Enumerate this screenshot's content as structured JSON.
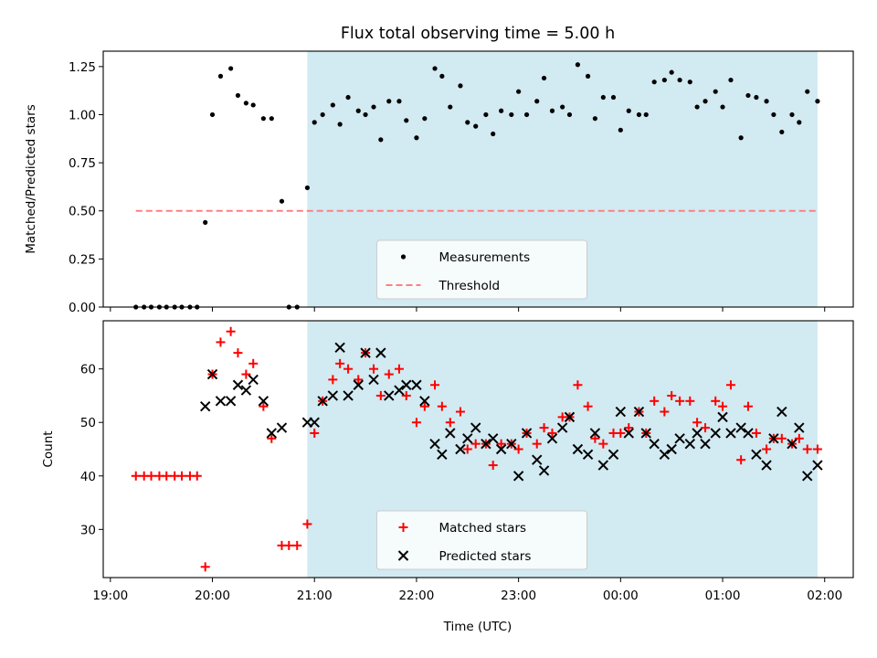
{
  "figure": {
    "title": "Flux total observing time = 5.00 h",
    "xlabel": "Time (UTC)"
  },
  "chart_data": [
    {
      "type": "scatter",
      "panel": "top",
      "ylabel": "Matched/Predicted stars",
      "ylim": [
        0,
        1.33
      ],
      "yticks": [
        0.0,
        0.25,
        0.5,
        0.75,
        1.0,
        1.25
      ],
      "ytick_labels": [
        "0.00",
        "0.25",
        "0.50",
        "0.75",
        "1.00",
        "1.25"
      ],
      "x_unit": "hours after 19:00 UTC",
      "xlim": [
        -0.07,
        7.28
      ],
      "xticks": [
        0,
        1,
        2,
        3,
        4,
        5,
        6,
        7
      ],
      "xtick_labels": [
        "19:00",
        "20:00",
        "21:00",
        "22:00",
        "23:00",
        "00:00",
        "01:00",
        "02:00"
      ],
      "shaded_region": {
        "x0": 1.93,
        "x1": 6.93,
        "color": "#add8e6"
      },
      "legend": {
        "placement": "lower center",
        "entries": [
          "Measurements",
          "Threshold"
        ]
      },
      "series": [
        {
          "name": "Measurements",
          "marker": "dot",
          "color": "#000000",
          "points": [
            [
              0.25,
              0.0
            ],
            [
              0.33,
              0.0
            ],
            [
              0.4,
              0.0
            ],
            [
              0.48,
              0.0
            ],
            [
              0.55,
              0.0
            ],
            [
              0.63,
              0.0
            ],
            [
              0.7,
              0.0
            ],
            [
              0.78,
              0.0
            ],
            [
              0.85,
              0.0
            ],
            [
              0.93,
              0.44
            ],
            [
              1.0,
              1.0
            ],
            [
              1.08,
              1.2
            ],
            [
              1.18,
              1.24
            ],
            [
              1.25,
              1.1
            ],
            [
              1.33,
              1.06
            ],
            [
              1.4,
              1.05
            ],
            [
              1.5,
              0.98
            ],
            [
              1.58,
              0.98
            ],
            [
              1.68,
              0.55
            ],
            [
              1.75,
              0.0
            ],
            [
              1.83,
              0.0
            ],
            [
              1.93,
              0.62
            ],
            [
              2.0,
              0.96
            ],
            [
              2.08,
              1.0
            ],
            [
              2.18,
              1.05
            ],
            [
              2.25,
              0.95
            ],
            [
              2.33,
              1.09
            ],
            [
              2.43,
              1.02
            ],
            [
              2.5,
              1.0
            ],
            [
              2.58,
              1.04
            ],
            [
              2.65,
              0.87
            ],
            [
              2.73,
              1.07
            ],
            [
              2.83,
              1.07
            ],
            [
              2.9,
              0.97
            ],
            [
              3.0,
              0.88
            ],
            [
              3.08,
              0.98
            ],
            [
              3.18,
              1.24
            ],
            [
              3.25,
              1.2
            ],
            [
              3.33,
              1.04
            ],
            [
              3.43,
              1.15
            ],
            [
              3.5,
              0.96
            ],
            [
              3.58,
              0.94
            ],
            [
              3.68,
              1.0
            ],
            [
              3.75,
              0.9
            ],
            [
              3.83,
              1.02
            ],
            [
              3.93,
              1.0
            ],
            [
              4.0,
              1.12
            ],
            [
              4.08,
              1.0
            ],
            [
              4.18,
              1.07
            ],
            [
              4.25,
              1.19
            ],
            [
              4.33,
              1.02
            ],
            [
              4.43,
              1.04
            ],
            [
              4.5,
              1.0
            ],
            [
              4.58,
              1.26
            ],
            [
              4.68,
              1.2
            ],
            [
              4.75,
              0.98
            ],
            [
              4.83,
              1.09
            ],
            [
              4.93,
              1.09
            ],
            [
              5.0,
              0.92
            ],
            [
              5.08,
              1.02
            ],
            [
              5.18,
              1.0
            ],
            [
              5.25,
              1.0
            ],
            [
              5.33,
              1.17
            ],
            [
              5.43,
              1.18
            ],
            [
              5.5,
              1.22
            ],
            [
              5.58,
              1.18
            ],
            [
              5.68,
              1.17
            ],
            [
              5.75,
              1.04
            ],
            [
              5.83,
              1.07
            ],
            [
              5.93,
              1.12
            ],
            [
              6.0,
              1.04
            ],
            [
              6.08,
              1.18
            ],
            [
              6.18,
              0.88
            ],
            [
              6.25,
              1.1
            ],
            [
              6.33,
              1.09
            ],
            [
              6.43,
              1.07
            ],
            [
              6.5,
              1.0
            ],
            [
              6.58,
              0.91
            ],
            [
              6.68,
              1.0
            ],
            [
              6.75,
              0.96
            ],
            [
              6.83,
              1.12
            ],
            [
              6.93,
              1.07
            ]
          ]
        },
        {
          "name": "Threshold",
          "style": "dashed-line",
          "color": "#ff7f7f",
          "points": [
            [
              0.25,
              0.5
            ],
            [
              6.93,
              0.5
            ]
          ]
        }
      ]
    },
    {
      "type": "scatter",
      "panel": "bottom",
      "ylabel": "Count",
      "ylim": [
        21,
        69
      ],
      "yticks": [
        30,
        40,
        50,
        60
      ],
      "ytick_labels": [
        "30",
        "40",
        "50",
        "60"
      ],
      "x_unit": "hours after 19:00 UTC",
      "xlim": [
        -0.07,
        7.28
      ],
      "xticks": [
        0,
        1,
        2,
        3,
        4,
        5,
        6,
        7
      ],
      "xtick_labels": [
        "19:00",
        "20:00",
        "21:00",
        "22:00",
        "23:00",
        "00:00",
        "01:00",
        "02:00"
      ],
      "shaded_region": {
        "x0": 1.93,
        "x1": 6.93,
        "color": "#add8e6"
      },
      "legend": {
        "placement": "lower center",
        "entries": [
          "Matched stars",
          "Predicted stars"
        ]
      },
      "series": [
        {
          "name": "Matched stars",
          "marker": "plus",
          "color": "#ff0000",
          "points": [
            [
              0.25,
              40
            ],
            [
              0.33,
              40
            ],
            [
              0.4,
              40
            ],
            [
              0.48,
              40
            ],
            [
              0.55,
              40
            ],
            [
              0.63,
              40
            ],
            [
              0.7,
              40
            ],
            [
              0.78,
              40
            ],
            [
              0.85,
              40
            ],
            [
              0.93,
              23
            ],
            [
              1.0,
              59
            ],
            [
              1.08,
              65
            ],
            [
              1.18,
              67
            ],
            [
              1.25,
              63
            ],
            [
              1.33,
              59
            ],
            [
              1.4,
              61
            ],
            [
              1.5,
              53
            ],
            [
              1.58,
              47
            ],
            [
              1.68,
              27
            ],
            [
              1.75,
              27
            ],
            [
              1.83,
              27
            ],
            [
              1.93,
              31
            ],
            [
              2.0,
              48
            ],
            [
              2.08,
              54
            ],
            [
              2.18,
              58
            ],
            [
              2.25,
              61
            ],
            [
              2.33,
              60
            ],
            [
              2.43,
              58
            ],
            [
              2.5,
              63
            ],
            [
              2.58,
              60
            ],
            [
              2.65,
              55
            ],
            [
              2.73,
              59
            ],
            [
              2.83,
              60
            ],
            [
              2.9,
              55
            ],
            [
              3.0,
              50
            ],
            [
              3.08,
              53
            ],
            [
              3.18,
              57
            ],
            [
              3.25,
              53
            ],
            [
              3.33,
              50
            ],
            [
              3.43,
              52
            ],
            [
              3.5,
              45
            ],
            [
              3.58,
              46
            ],
            [
              3.68,
              46
            ],
            [
              3.75,
              42
            ],
            [
              3.83,
              46
            ],
            [
              3.93,
              46
            ],
            [
              4.0,
              45
            ],
            [
              4.08,
              48
            ],
            [
              4.18,
              46
            ],
            [
              4.25,
              49
            ],
            [
              4.33,
              48
            ],
            [
              4.43,
              51
            ],
            [
              4.5,
              51
            ],
            [
              4.58,
              57
            ],
            [
              4.68,
              53
            ],
            [
              4.75,
              47
            ],
            [
              4.83,
              46
            ],
            [
              4.93,
              48
            ],
            [
              5.0,
              48
            ],
            [
              5.08,
              49
            ],
            [
              5.18,
              52
            ],
            [
              5.25,
              48
            ],
            [
              5.33,
              54
            ],
            [
              5.43,
              52
            ],
            [
              5.5,
              55
            ],
            [
              5.58,
              54
            ],
            [
              5.68,
              54
            ],
            [
              5.75,
              50
            ],
            [
              5.83,
              49
            ],
            [
              5.93,
              54
            ],
            [
              6.0,
              53
            ],
            [
              6.08,
              57
            ],
            [
              6.18,
              43
            ],
            [
              6.25,
              53
            ],
            [
              6.33,
              48
            ],
            [
              6.43,
              45
            ],
            [
              6.5,
              47
            ],
            [
              6.58,
              47
            ],
            [
              6.68,
              46
            ],
            [
              6.75,
              47
            ],
            [
              6.83,
              45
            ],
            [
              6.93,
              45
            ]
          ]
        },
        {
          "name": "Predicted stars",
          "marker": "x",
          "color": "#000000",
          "points": [
            [
              0.93,
              53
            ],
            [
              1.0,
              59
            ],
            [
              1.08,
              54
            ],
            [
              1.18,
              54
            ],
            [
              1.25,
              57
            ],
            [
              1.33,
              56
            ],
            [
              1.4,
              58
            ],
            [
              1.5,
              54
            ],
            [
              1.58,
              48
            ],
            [
              1.68,
              49
            ],
            [
              1.93,
              50
            ],
            [
              2.0,
              50
            ],
            [
              2.08,
              54
            ],
            [
              2.18,
              55
            ],
            [
              2.25,
              64
            ],
            [
              2.33,
              55
            ],
            [
              2.43,
              57
            ],
            [
              2.5,
              63
            ],
            [
              2.58,
              58
            ],
            [
              2.65,
              63
            ],
            [
              2.73,
              55
            ],
            [
              2.83,
              56
            ],
            [
              2.9,
              57
            ],
            [
              3.0,
              57
            ],
            [
              3.08,
              54
            ],
            [
              3.18,
              46
            ],
            [
              3.25,
              44
            ],
            [
              3.33,
              48
            ],
            [
              3.43,
              45
            ],
            [
              3.5,
              47
            ],
            [
              3.58,
              49
            ],
            [
              3.68,
              46
            ],
            [
              3.75,
              47
            ],
            [
              3.83,
              45
            ],
            [
              3.93,
              46
            ],
            [
              4.0,
              40
            ],
            [
              4.08,
              48
            ],
            [
              4.18,
              43
            ],
            [
              4.25,
              41
            ],
            [
              4.33,
              47
            ],
            [
              4.43,
              49
            ],
            [
              4.5,
              51
            ],
            [
              4.58,
              45
            ],
            [
              4.68,
              44
            ],
            [
              4.75,
              48
            ],
            [
              4.83,
              42
            ],
            [
              4.93,
              44
            ],
            [
              5.0,
              52
            ],
            [
              5.08,
              48
            ],
            [
              5.18,
              52
            ],
            [
              5.25,
              48
            ],
            [
              5.33,
              46
            ],
            [
              5.43,
              44
            ],
            [
              5.5,
              45
            ],
            [
              5.58,
              47
            ],
            [
              5.68,
              46
            ],
            [
              5.75,
              48
            ],
            [
              5.83,
              46
            ],
            [
              5.93,
              48
            ],
            [
              6.0,
              51
            ],
            [
              6.08,
              48
            ],
            [
              6.18,
              49
            ],
            [
              6.25,
              48
            ],
            [
              6.33,
              44
            ],
            [
              6.43,
              42
            ],
            [
              6.5,
              47
            ],
            [
              6.58,
              52
            ],
            [
              6.68,
              46
            ],
            [
              6.75,
              49
            ],
            [
              6.83,
              40
            ],
            [
              6.93,
              42
            ]
          ]
        }
      ]
    }
  ]
}
